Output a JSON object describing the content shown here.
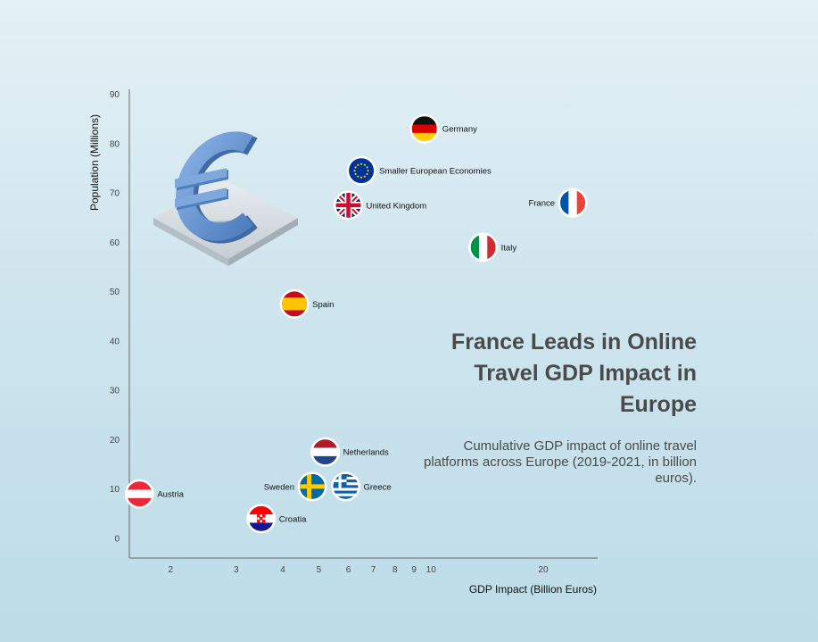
{
  "chart_data": {
    "type": "scatter",
    "title": "France Leads in Online Travel GDP Impact in Europe",
    "subtitle": "Cumulative GDP impact of online travel platforms across Europe (2019-2021, in billion euros).",
    "xlabel": "GDP Impact (Billion Euros)",
    "ylabel": "Population (Millions)",
    "x_scale": "log",
    "xlim": [
      1.55,
      28
    ],
    "ylim": [
      -4,
      91
    ],
    "x_ticks": [
      2,
      3,
      4,
      5,
      6,
      7,
      8,
      9,
      10,
      20
    ],
    "y_ticks": [
      0,
      10,
      20,
      30,
      40,
      50,
      60,
      70,
      80,
      90
    ],
    "grid": false,
    "points": [
      {
        "label": "Germany",
        "x": 9.6,
        "y": 83,
        "flag": "germany"
      },
      {
        "label": "Smaller European Economies",
        "x": 6.5,
        "y": 74.5,
        "flag": "eu"
      },
      {
        "label": "United Kingdom",
        "x": 6.0,
        "y": 67.5,
        "flag": "uk"
      },
      {
        "label": "France",
        "x": 24.0,
        "y": 68,
        "flag": "france",
        "label_side": "left"
      },
      {
        "label": "Italy",
        "x": 13.8,
        "y": 59,
        "flag": "italy"
      },
      {
        "label": "Spain",
        "x": 4.3,
        "y": 47.5,
        "flag": "spain"
      },
      {
        "label": "Netherlands",
        "x": 5.2,
        "y": 17.5,
        "flag": "netherlands"
      },
      {
        "label": "Sweden",
        "x": 4.8,
        "y": 10.5,
        "flag": "sweden",
        "label_side": "left"
      },
      {
        "label": "Greece",
        "x": 5.9,
        "y": 10.5,
        "flag": "greece"
      },
      {
        "label": "Austria",
        "x": 1.65,
        "y": 9,
        "flag": "austria"
      },
      {
        "label": "Croatia",
        "x": 3.5,
        "y": 4,
        "flag": "croatia"
      }
    ]
  },
  "decoration": {
    "icon": "euro-3d-icon",
    "accent_color": "#6a96d0"
  }
}
